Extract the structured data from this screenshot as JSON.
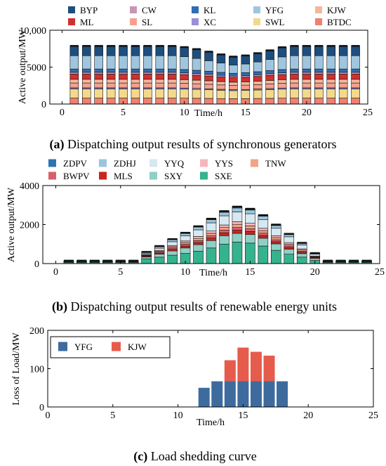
{
  "chart_data": [
    {
      "type": "bar",
      "stacked": true,
      "caption_label": "(a)",
      "caption": " Dispatching output results of synchronous generators",
      "xlabel": "Time/h",
      "ylabel": "Active output/MW",
      "xlim": [
        -1,
        25
      ],
      "ylim": [
        0,
        10000
      ],
      "xticks": [
        0,
        5,
        10,
        15,
        20,
        25
      ],
      "yticks": [
        0,
        5000,
        10000
      ],
      "ytick_labels": [
        "0",
        "5000",
        "10,000"
      ],
      "legend_position": "top",
      "x": [
        1,
        2,
        3,
        4,
        5,
        6,
        7,
        8,
        9,
        10,
        11,
        12,
        13,
        14,
        15,
        16,
        17,
        18,
        19,
        20,
        21,
        22,
        23,
        24
      ],
      "series": [
        {
          "name": "BTDC",
          "color": "#f08070",
          "values": [
            800,
            800,
            800,
            800,
            800,
            800,
            800,
            800,
            800,
            790,
            780,
            760,
            740,
            720,
            730,
            750,
            770,
            790,
            800,
            800,
            800,
            800,
            800,
            800
          ]
        },
        {
          "name": "SWL",
          "color": "#f3d98a",
          "values": [
            1250,
            1250,
            1250,
            1250,
            1250,
            1250,
            1250,
            1250,
            1250,
            1230,
            1200,
            1170,
            1130,
            1100,
            1120,
            1150,
            1190,
            1230,
            1250,
            1250,
            1250,
            1250,
            1250,
            1250
          ]
        },
        {
          "name": "XC",
          "color": "#9b8fd6",
          "values": [
            150,
            150,
            150,
            150,
            150,
            150,
            150,
            150,
            150,
            150,
            140,
            140,
            130,
            130,
            130,
            140,
            140,
            150,
            150,
            150,
            150,
            150,
            150,
            150
          ]
        },
        {
          "name": "SL",
          "color": "#f6a08e",
          "values": [
            650,
            650,
            650,
            650,
            650,
            650,
            650,
            650,
            650,
            640,
            630,
            610,
            590,
            570,
            580,
            600,
            620,
            640,
            650,
            650,
            650,
            650,
            650,
            650
          ]
        },
        {
          "name": "KJW",
          "color": "#f4b79b",
          "values": [
            500,
            500,
            500,
            500,
            500,
            500,
            500,
            500,
            500,
            490,
            480,
            470,
            450,
            440,
            450,
            460,
            480,
            490,
            500,
            500,
            500,
            500,
            500,
            500
          ]
        },
        {
          "name": "ML",
          "color": "#d1302e",
          "values": [
            700,
            700,
            700,
            700,
            700,
            700,
            700,
            700,
            700,
            690,
            670,
            650,
            630,
            610,
            620,
            640,
            660,
            690,
            700,
            700,
            700,
            700,
            700,
            700
          ]
        },
        {
          "name": "CW",
          "color": "#c796b4",
          "values": [
            250,
            250,
            250,
            250,
            250,
            250,
            250,
            250,
            250,
            240,
            240,
            230,
            220,
            210,
            220,
            230,
            240,
            240,
            250,
            250,
            250,
            250,
            250,
            250
          ]
        },
        {
          "name": "KL",
          "color": "#2f6db5",
          "values": [
            450,
            450,
            450,
            450,
            450,
            450,
            450,
            450,
            450,
            440,
            430,
            420,
            400,
            390,
            400,
            410,
            430,
            440,
            450,
            450,
            450,
            450,
            450,
            450
          ]
        },
        {
          "name": "YFG",
          "color": "#9fc6de",
          "values": [
            1800,
            1800,
            1800,
            1800,
            1800,
            1800,
            1800,
            1800,
            1800,
            1740,
            1600,
            1420,
            1260,
            1120,
            1180,
            1320,
            1500,
            1720,
            1800,
            1800,
            1800,
            1800,
            1800,
            1800
          ]
        },
        {
          "name": "BYP",
          "color": "#1d4e7e",
          "values": [
            1300,
            1300,
            1300,
            1300,
            1300,
            1300,
            1300,
            1300,
            1300,
            1280,
            1250,
            1200,
            1150,
            1110,
            1130,
            1170,
            1220,
            1280,
            1300,
            1300,
            1300,
            1300,
            1300,
            1300
          ]
        }
      ],
      "legend_order": [
        "BYP",
        "CW",
        "KL",
        "YFG",
        "KJW",
        "ML",
        "SL",
        "XC",
        "SWL",
        "BTDC"
      ]
    },
    {
      "type": "bar",
      "stacked": true,
      "caption_label": "(b)",
      "caption": " Dispatching output results of renewable energy units",
      "xlabel": "Time/h",
      "ylabel": "Active output/MW",
      "xlim": [
        -1,
        25
      ],
      "ylim": [
        0,
        4000
      ],
      "xticks": [
        0,
        5,
        10,
        15,
        20,
        25
      ],
      "yticks": [
        0,
        2000,
        4000
      ],
      "ytick_labels": [
        "0",
        "2000",
        "4000"
      ],
      "legend_position": "top",
      "x": [
        1,
        2,
        3,
        4,
        5,
        6,
        7,
        8,
        9,
        10,
        11,
        12,
        13,
        14,
        15,
        16,
        17,
        18,
        19,
        20,
        21,
        22,
        23,
        24
      ],
      "series": [
        {
          "name": "SXE",
          "color": "#35b38f",
          "values": [
            60,
            60,
            60,
            60,
            60,
            60,
            250,
            330,
            430,
            520,
            630,
            800,
            1000,
            1100,
            1050,
            900,
            680,
            480,
            330,
            160,
            60,
            60,
            60,
            60
          ]
        },
        {
          "name": "SXY",
          "color": "#8fcfc6",
          "values": [
            30,
            30,
            30,
            30,
            30,
            30,
            90,
            150,
            220,
            280,
            340,
            380,
            430,
            450,
            440,
            400,
            330,
            260,
            180,
            100,
            30,
            30,
            30,
            30
          ]
        },
        {
          "name": "MLS",
          "color": "#c9261f",
          "values": [
            20,
            20,
            20,
            20,
            20,
            20,
            40,
            60,
            80,
            100,
            110,
            130,
            150,
            160,
            155,
            140,
            110,
            85,
            65,
            40,
            20,
            20,
            20,
            20
          ]
        },
        {
          "name": "BWPV",
          "color": "#d9606a",
          "values": [
            0,
            0,
            0,
            0,
            0,
            0,
            30,
            50,
            70,
            90,
            100,
            110,
            130,
            140,
            135,
            120,
            100,
            80,
            60,
            30,
            0,
            0,
            0,
            0
          ]
        },
        {
          "name": "TNW",
          "color": "#f2a487",
          "values": [
            0,
            0,
            0,
            0,
            0,
            0,
            30,
            50,
            70,
            90,
            110,
            130,
            140,
            160,
            150,
            130,
            110,
            90,
            60,
            30,
            0,
            0,
            0,
            0
          ]
        },
        {
          "name": "YYS",
          "color": "#f7b6bd",
          "values": [
            0,
            0,
            0,
            0,
            0,
            0,
            20,
            40,
            60,
            80,
            100,
            120,
            130,
            140,
            135,
            120,
            100,
            80,
            60,
            30,
            0,
            0,
            0,
            0
          ]
        },
        {
          "name": "YYQ",
          "color": "#d6e8f1",
          "values": [
            0,
            0,
            0,
            0,
            0,
            0,
            60,
            110,
            190,
            260,
            340,
            420,
            470,
            500,
            490,
            450,
            380,
            300,
            200,
            90,
            0,
            0,
            0,
            0
          ]
        },
        {
          "name": "ZDHJ",
          "color": "#9bc5dc",
          "values": [
            30,
            30,
            30,
            30,
            30,
            30,
            60,
            80,
            100,
            120,
            140,
            160,
            180,
            200,
            190,
            170,
            140,
            110,
            80,
            40,
            30,
            30,
            30,
            30
          ]
        },
        {
          "name": "ZDPV",
          "color": "#2c74b5",
          "values": [
            0,
            0,
            0,
            0,
            0,
            0,
            10,
            20,
            25,
            30,
            35,
            40,
            50,
            60,
            55,
            45,
            40,
            30,
            20,
            10,
            0,
            0,
            0,
            0
          ]
        }
      ],
      "legend_order": [
        "ZDPV",
        "ZDHJ",
        "YYQ",
        "YYS",
        "TNW",
        "BWPV",
        "MLS",
        "SXY",
        "SXE"
      ]
    },
    {
      "type": "bar",
      "stacked": true,
      "caption_label": "(c)",
      "caption": " Load shedding curve",
      "xlabel": "Time/h",
      "ylabel": "Loss of Load/MW",
      "xlim": [
        0,
        25
      ],
      "ylim": [
        0,
        200
      ],
      "xticks": [
        0,
        5,
        10,
        15,
        20,
        25
      ],
      "yticks": [
        0,
        100,
        200
      ],
      "ytick_labels": [
        "0",
        "100",
        "200"
      ],
      "legend_position": "top-left",
      "x": [
        1,
        2,
        3,
        4,
        5,
        6,
        7,
        8,
        9,
        10,
        11,
        12,
        13,
        14,
        15,
        16,
        17,
        18,
        19,
        20,
        21,
        22,
        23,
        24
      ],
      "series": [
        {
          "name": "YFG",
          "color": "#3e6b9e",
          "values": [
            0,
            0,
            0,
            0,
            0,
            0,
            0,
            0,
            0,
            0,
            0,
            50,
            67,
            67,
            67,
            67,
            67,
            67,
            0,
            0,
            0,
            0,
            0,
            0
          ]
        },
        {
          "name": "KJW",
          "color": "#e65c4c",
          "values": [
            0,
            0,
            0,
            0,
            0,
            0,
            0,
            0,
            0,
            0,
            0,
            0,
            0,
            55,
            88,
            77,
            67,
            0,
            0,
            0,
            0,
            0,
            0,
            0
          ]
        }
      ],
      "legend_order": [
        "YFG",
        "KJW"
      ]
    }
  ]
}
